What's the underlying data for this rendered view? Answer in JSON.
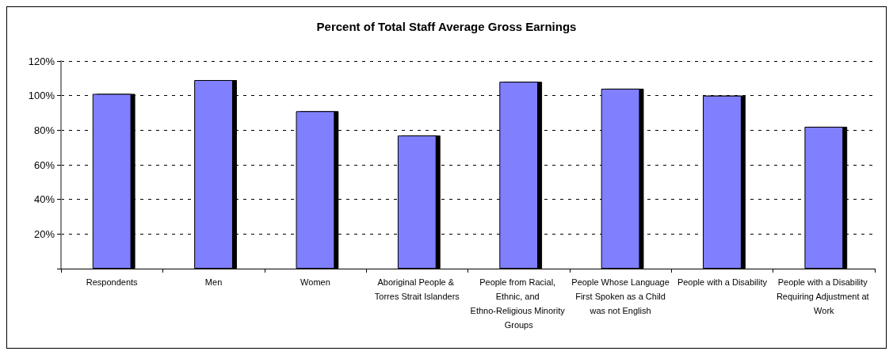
{
  "chart_data": {
    "type": "bar",
    "title": "Percent of Total Staff Average Gross Earnings",
    "categories": [
      "Respondents",
      "Men",
      "Women",
      "Aboriginal People & Torres Strait Islanders",
      "People from Racial, Ethnic, and Ethno-Religious Minority Groups",
      "People Whose Language First Spoken as a Child was not English",
      "People with a Disability",
      "People with a Disability Requiring Adjustment at Work"
    ],
    "values": [
      101,
      109,
      91,
      77,
      108,
      104,
      100,
      82
    ],
    "color": "#8080ff",
    "ylim": [
      0,
      120
    ],
    "yticks": [
      {
        "value": 0,
        "label": null
      },
      {
        "value": 20,
        "label": "20%"
      },
      {
        "value": 40,
        "label": "40%"
      },
      {
        "value": 60,
        "label": "60%"
      },
      {
        "value": 80,
        "label": "80%"
      },
      {
        "value": 100,
        "label": "100%"
      },
      {
        "value": 120,
        "label": "120%"
      }
    ],
    "grid": "y"
  }
}
